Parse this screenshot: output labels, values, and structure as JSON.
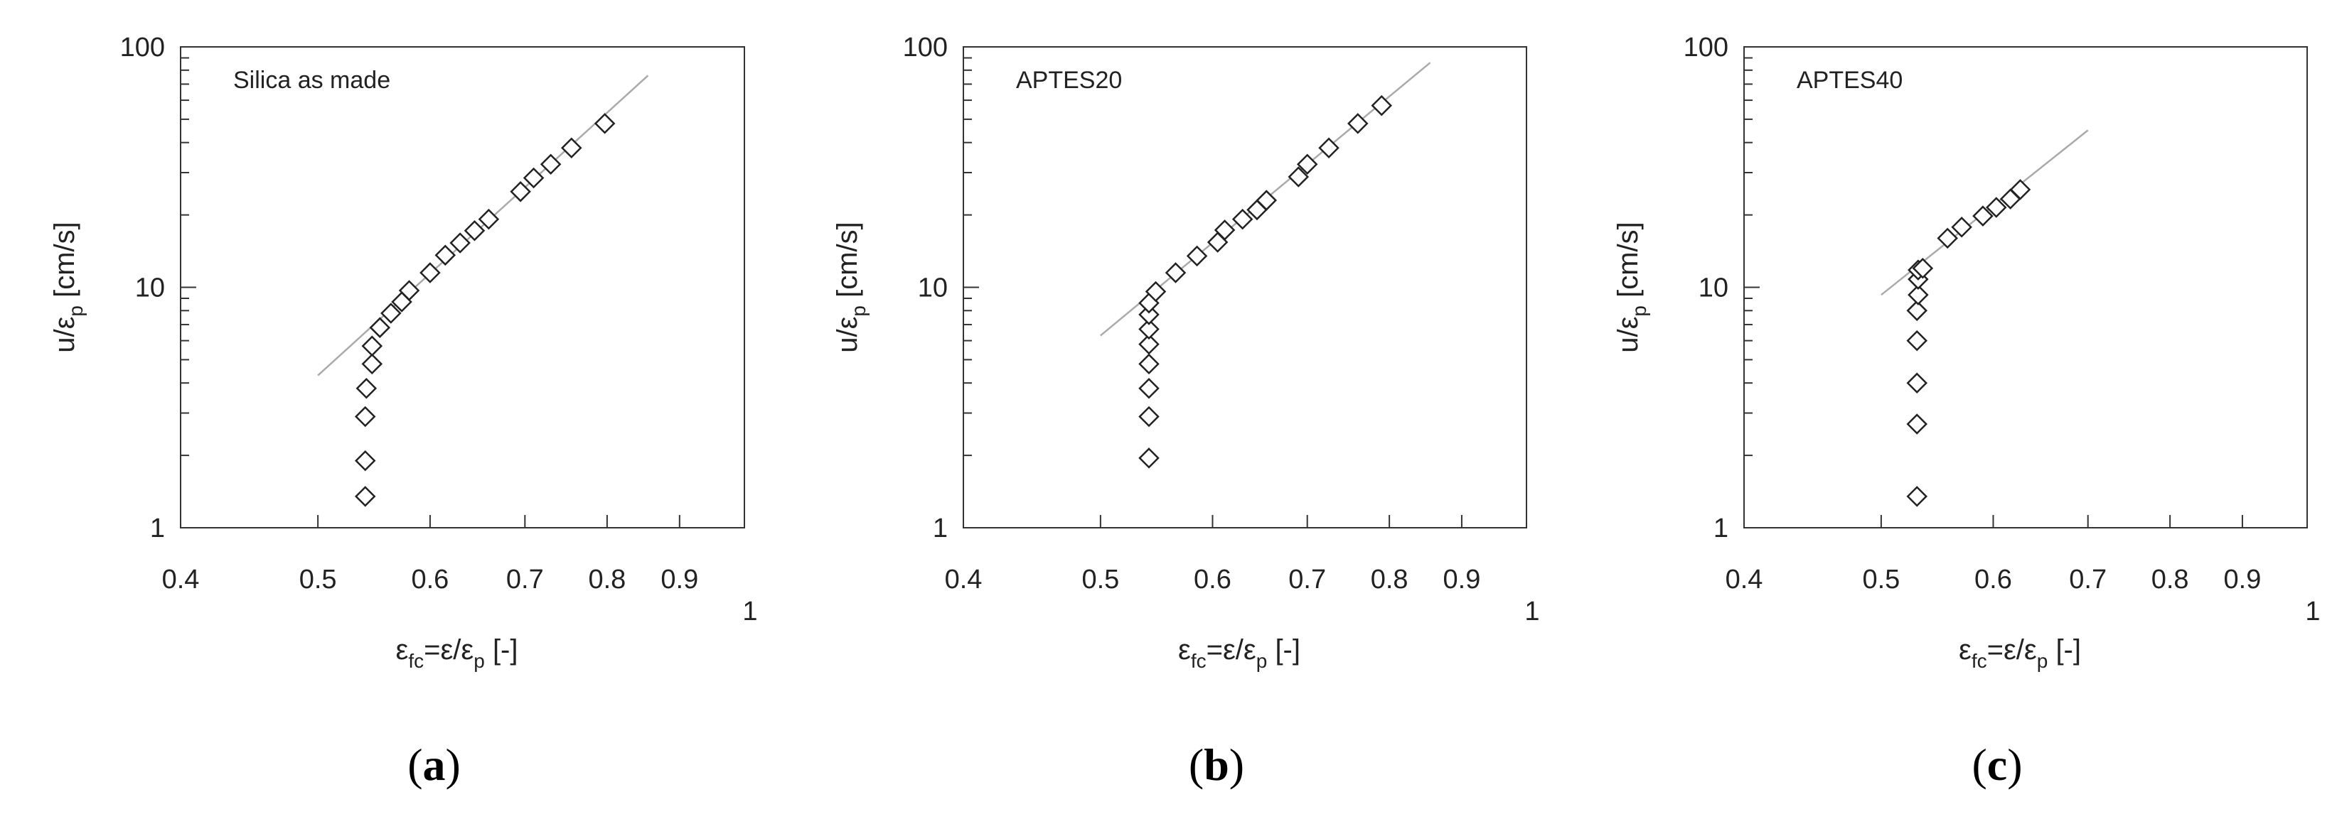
{
  "chart_data": [
    {
      "type": "scatter",
      "panel_label": "(a)",
      "panel_letter": "a",
      "annotation": "Silica as made",
      "ylabel_main": "u/ε",
      "ylabel_sub": "p",
      "ylabel_unit": "[cm/s]",
      "xlabel_eps": "ε",
      "xlabel_sub1": "fc",
      "xlabel_mid": "=ε/ε",
      "xlabel_sub2": "p",
      "xlabel_unit": "[-]",
      "x_scale": "log",
      "y_scale": "log",
      "xlim": [
        0.4,
        1.0
      ],
      "ylim": [
        1,
        100
      ],
      "x_ticks": [
        0.4,
        0.5,
        0.6,
        0.7,
        0.8,
        0.9,
        1
      ],
      "x_tick_labels": [
        "0.4",
        "0.5",
        "0.6",
        "0.7",
        "0.8",
        "0.9",
        "1"
      ],
      "y_ticks": [
        1,
        10,
        100
      ],
      "y_tick_labels": [
        "1",
        "10",
        "100"
      ],
      "grid": false,
      "marker": "open-diamond",
      "x": [
        0.54,
        0.54,
        0.54,
        0.541,
        0.546,
        0.546,
        0.553,
        0.563,
        0.573,
        0.58,
        0.6,
        0.615,
        0.63,
        0.645,
        0.66,
        0.695,
        0.71,
        0.73,
        0.755,
        0.797
      ],
      "y": [
        1.35,
        1.9,
        2.9,
        3.8,
        4.8,
        5.7,
        6.8,
        7.8,
        8.7,
        9.7,
        11.5,
        13.6,
        15.3,
        17.2,
        19.2,
        25,
        28.5,
        32.5,
        38,
        48
      ],
      "fit_line": {
        "x": [
          0.5,
          0.855
        ],
        "y": [
          4.3,
          76
        ]
      }
    },
    {
      "type": "scatter",
      "panel_label": "(b)",
      "panel_letter": "b",
      "annotation": "APTES20",
      "ylabel_main": "u/ε",
      "ylabel_sub": "p",
      "ylabel_unit": "[cm/s]",
      "xlabel_eps": "ε",
      "xlabel_sub1": "fc",
      "xlabel_mid": "=ε/ε",
      "xlabel_sub2": "p",
      "xlabel_unit": "[-]",
      "x_scale": "log",
      "y_scale": "log",
      "xlim": [
        0.4,
        1.0
      ],
      "ylim": [
        1,
        100
      ],
      "x_ticks": [
        0.4,
        0.5,
        0.6,
        0.7,
        0.8,
        0.9,
        1
      ],
      "x_tick_labels": [
        "0.4",
        "0.5",
        "0.6",
        "0.7",
        "0.8",
        "0.9",
        "1"
      ],
      "y_ticks": [
        1,
        10,
        100
      ],
      "y_tick_labels": [
        "1",
        "10",
        "100"
      ],
      "grid": false,
      "marker": "open-diamond",
      "x": [
        0.541,
        0.541,
        0.541,
        0.541,
        0.541,
        0.541,
        0.541,
        0.541,
        0.547,
        0.565,
        0.585,
        0.605,
        0.612,
        0.63,
        0.645,
        0.655,
        0.69,
        0.7,
        0.725,
        0.76,
        0.79
      ],
      "y": [
        1.95,
        2.9,
        3.8,
        4.8,
        5.8,
        6.7,
        7.7,
        8.6,
        9.6,
        11.5,
        13.5,
        15.4,
        17.3,
        19.2,
        21,
        23,
        28.8,
        32.5,
        38,
        48,
        57
      ],
      "fit_line": {
        "x": [
          0.5,
          0.855
        ],
        "y": [
          6.3,
          86
        ]
      }
    },
    {
      "type": "scatter",
      "panel_label": "(c)",
      "panel_letter": "c",
      "annotation": "APTES40",
      "ylabel_main": "u/ε",
      "ylabel_sub": "p",
      "ylabel_unit": "[cm/s]",
      "xlabel_eps": "ε",
      "xlabel_sub1": "fc",
      "xlabel_mid": "=ε/ε",
      "xlabel_sub2": "p",
      "xlabel_unit": "[-]",
      "x_scale": "log",
      "y_scale": "log",
      "xlim": [
        0.4,
        1.0
      ],
      "ylim": [
        1,
        100
      ],
      "x_ticks": [
        0.4,
        0.5,
        0.6,
        0.7,
        0.8,
        0.9,
        1
      ],
      "x_tick_labels": [
        "0.4",
        "0.5",
        "0.6",
        "0.7",
        "0.8",
        "0.9",
        "1"
      ],
      "y_ticks": [
        1,
        10,
        100
      ],
      "y_tick_labels": [
        "1",
        "10",
        "100"
      ],
      "grid": false,
      "marker": "open-diamond",
      "x": [
        0.53,
        0.53,
        0.53,
        0.53,
        0.53,
        0.531,
        0.531,
        0.531,
        0.535,
        0.557,
        0.57,
        0.59,
        0.603,
        0.617,
        0.627
      ],
      "y": [
        1.35,
        2.7,
        4.0,
        6.0,
        8.0,
        9.3,
        10.8,
        11.8,
        12.0,
        16.0,
        17.8,
        19.8,
        21.5,
        23.3,
        25.5
      ],
      "fit_line": {
        "x": [
          0.5,
          0.7
        ],
        "y": [
          9.3,
          45
        ]
      }
    }
  ],
  "style": {
    "axis_color": "#333333",
    "marker_stroke": "#222222",
    "fit_line_color": "#aaaaaa",
    "background": "#ffffff"
  }
}
